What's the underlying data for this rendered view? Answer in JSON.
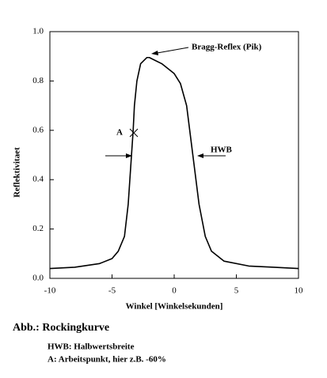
{
  "chart_data": {
    "type": "line",
    "xlabel": "Winkel [Winkelsekunden]",
    "ylabel": "Reflektivitaet",
    "x": [
      -10,
      -8,
      -6,
      -5,
      -4.5,
      -4,
      -3.7,
      -3.5,
      -3.3,
      -3.2,
      -3.0,
      -2.7,
      -2.2,
      -2,
      -1,
      0,
      0.5,
      1,
      1.5,
      2,
      2.5,
      3,
      4,
      6,
      8,
      10
    ],
    "series": [
      {
        "color": "#000000",
        "values": [
          0.04,
          0.045,
          0.06,
          0.08,
          0.11,
          0.17,
          0.3,
          0.45,
          0.6,
          0.7,
          0.8,
          0.87,
          0.895,
          0.895,
          0.87,
          0.83,
          0.79,
          0.7,
          0.5,
          0.3,
          0.17,
          0.11,
          0.07,
          0.05,
          0.045,
          0.04
        ]
      }
    ],
    "xlim": [
      -10,
      10
    ],
    "xticks": [
      -10,
      -5,
      0,
      5,
      10
    ],
    "ylim": [
      0,
      1
    ],
    "yticks": [
      {
        "value": 0,
        "label": "0.0"
      },
      0.2,
      0.4,
      0.6,
      0.8,
      {
        "value": 1,
        "label": "1.0"
      }
    ],
    "annotations": [
      "Bragg-Reflex (Pik)",
      "A",
      "HWB"
    ],
    "caption": {
      "title": "Abb.: Rockingkurve",
      "lines": [
        "HWB: Halbwertsbreite",
        "A: Arbeitspunkt, hier z.B. -60%"
      ]
    }
  }
}
